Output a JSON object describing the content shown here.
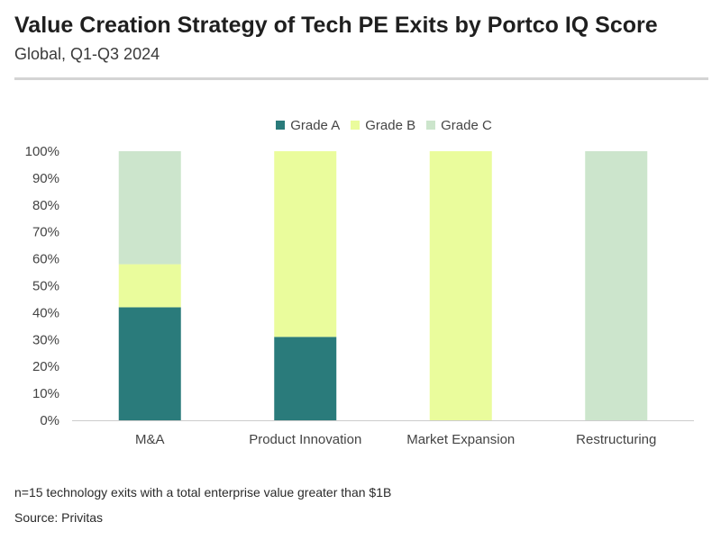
{
  "header": {
    "title": "Value Creation Strategy of Tech PE Exits by Portco IQ Score",
    "subtitle": "Global, Q1-Q3 2024"
  },
  "footer": {
    "note": "n=15 technology exits with a total enterprise value greater than $1B",
    "source": "Source: Privitas"
  },
  "colors": {
    "grade_a": "#2a7b7b",
    "grade_b": "#eafc9c",
    "grade_c": "#cce5cc",
    "axis": "#cccccc",
    "tick_text": "#444444"
  },
  "chart_data": {
    "type": "bar",
    "stacked": true,
    "categories": [
      "M&A",
      "Product Innovation",
      "Market Expansion",
      "Restructuring"
    ],
    "series": [
      {
        "name": "Grade A",
        "values": [
          42,
          31,
          0,
          0
        ]
      },
      {
        "name": "Grade B",
        "values": [
          16,
          69,
          100,
          0
        ]
      },
      {
        "name": "Grade C",
        "values": [
          42,
          0,
          0,
          100
        ]
      }
    ],
    "ylim": [
      0,
      100
    ],
    "yticks": [
      "0%",
      "10%",
      "20%",
      "30%",
      "40%",
      "50%",
      "60%",
      "70%",
      "80%",
      "90%",
      "100%"
    ],
    "legend_position": "top",
    "grid": false
  }
}
